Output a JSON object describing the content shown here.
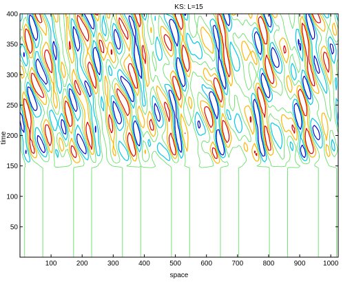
{
  "chart_data": {
    "type": "contour",
    "title": "KS: L=15",
    "xlabel": "space",
    "ylabel": "time",
    "xlim": [
      0,
      1024
    ],
    "ylim": [
      0,
      400
    ],
    "x_ticks": [
      100,
      200,
      300,
      400,
      500,
      600,
      700,
      800,
      900,
      1000
    ],
    "y_ticks": [
      50,
      100,
      150,
      200,
      250,
      300,
      350,
      400
    ],
    "grid": false,
    "legend": "none",
    "contour_colors": {
      "low": "#0000cc",
      "mid_low": "#00c8e6",
      "zero": "#66e066",
      "mid_high": "#ffb400",
      "high": "#dd0000"
    },
    "transition_time": 150,
    "quiescent_level_time": 120,
    "quiescent_low_level_time": 25,
    "quiescent_cells_x": [
      20,
      90,
      190,
      245,
      305,
      420,
      505,
      560,
      670,
      735,
      800,
      915,
      1000
    ],
    "stripe_drift": "chaotic traveling cells, drifting leftward with increasing time"
  }
}
